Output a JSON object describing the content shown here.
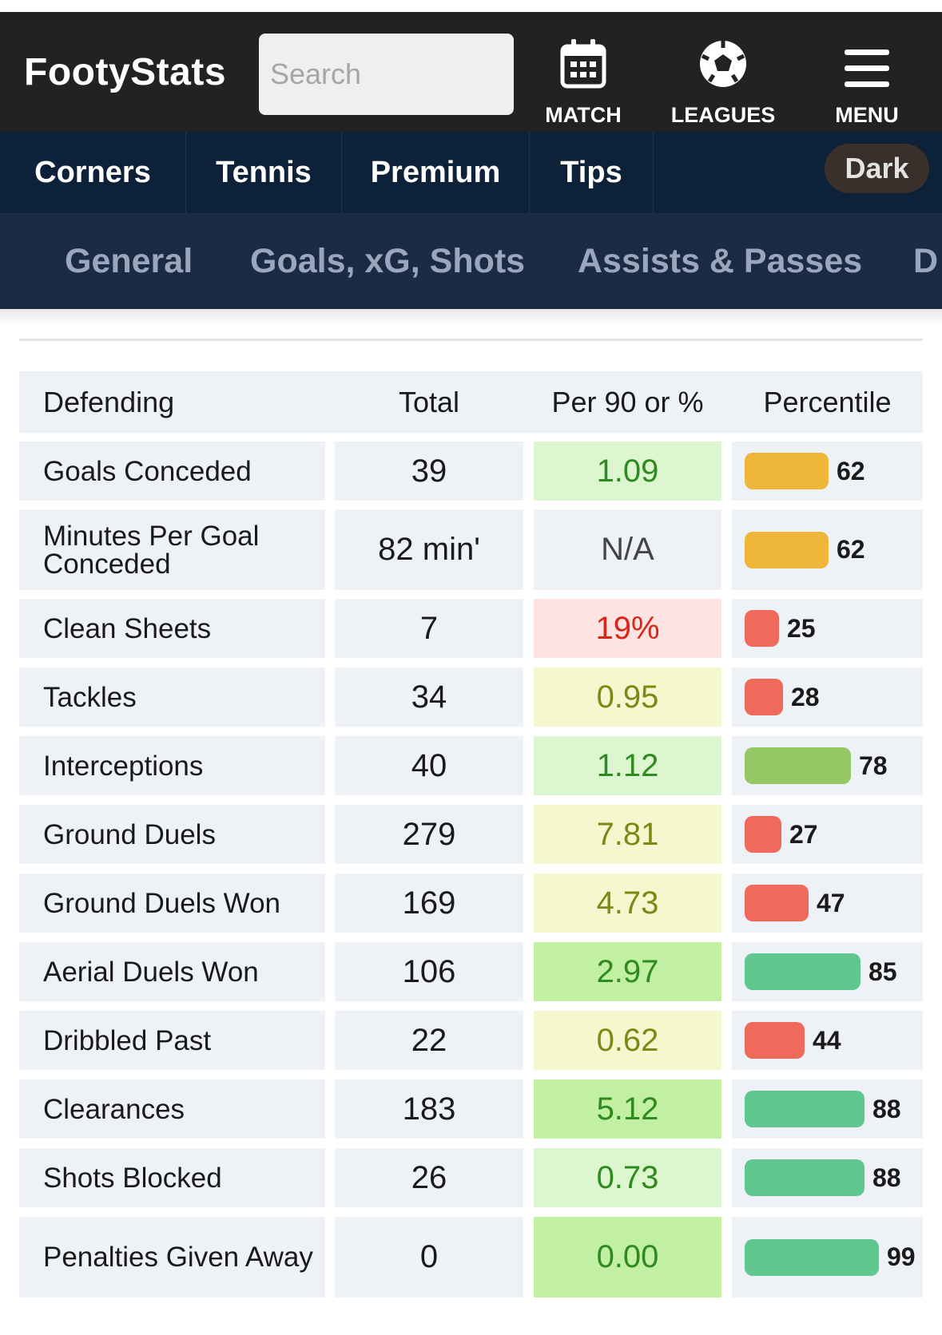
{
  "header": {
    "logo": "FootyStats",
    "search_placeholder": "Search",
    "nav": {
      "match": {
        "label": "MATCH",
        "icon": "calendar-icon"
      },
      "leagues": {
        "label": "LEAGUES",
        "icon": "soccer-ball-icon"
      },
      "menu": {
        "label": "MENU",
        "icon": "hamburger-menu-icon"
      }
    }
  },
  "subnav": {
    "items": [
      "Corners",
      "Tennis",
      "Premium",
      "Tips"
    ],
    "dark_toggle": "Dark"
  },
  "tabs": [
    "General",
    "Goals, xG, Shots",
    "Assists & Passes",
    "D"
  ],
  "table": {
    "headers": [
      "Defending",
      "Total",
      "Per 90 or %",
      "Percentile"
    ],
    "rows": [
      {
        "label": "Goals Conceded",
        "total": "39",
        "per": "1.09",
        "percentile": "62",
        "per_bg": "#dcf7d0",
        "per_color": "#2f8a1f",
        "bar_color": "#efb73a"
      },
      {
        "label": "Minutes Per Goal Conceded",
        "total": "82 min'",
        "per": "N/A",
        "percentile": "62",
        "per_bg": "#eef1f5",
        "per_color": "#444444",
        "bar_color": "#efb73a"
      },
      {
        "label": "Clean Sheets",
        "total": "7",
        "per": "19%",
        "percentile": "25",
        "per_bg": "#fde3e1",
        "per_color": "#d7261a",
        "bar_color": "#f06a5b"
      },
      {
        "label": "Tackles",
        "total": "34",
        "per": "0.95",
        "percentile": "28",
        "per_bg": "#f5f8cf",
        "per_color": "#7a8a16",
        "bar_color": "#f06a5b"
      },
      {
        "label": "Interceptions",
        "total": "40",
        "per": "1.12",
        "percentile": "78",
        "per_bg": "#dcf7d0",
        "per_color": "#2f8a1f",
        "bar_color": "#93c865"
      },
      {
        "label": "Ground Duels",
        "total": "279",
        "per": "7.81",
        "percentile": "27",
        "per_bg": "#f5f8cf",
        "per_color": "#7a8a16",
        "bar_color": "#f06a5b"
      },
      {
        "label": "Ground Duels Won",
        "total": "169",
        "per": "4.73",
        "percentile": "47",
        "per_bg": "#f5f8cf",
        "per_color": "#7a8a16",
        "bar_color": "#f06a5b"
      },
      {
        "label": "Aerial Duels Won",
        "total": "106",
        "per": "2.97",
        "percentile": "85",
        "per_bg": "#c2f0a2",
        "per_color": "#2f8a1f",
        "bar_color": "#5fc78f"
      },
      {
        "label": "Dribbled Past",
        "total": "22",
        "per": "0.62",
        "percentile": "44",
        "per_bg": "#f5f8cf",
        "per_color": "#7a8a16",
        "bar_color": "#f06a5b"
      },
      {
        "label": "Clearances",
        "total": "183",
        "per": "5.12",
        "percentile": "88",
        "per_bg": "#c2f0a2",
        "per_color": "#2f8a1f",
        "bar_color": "#5fc78f"
      },
      {
        "label": "Shots Blocked",
        "total": "26",
        "per": "0.73",
        "percentile": "88",
        "per_bg": "#dcf7d0",
        "per_color": "#2f8a1f",
        "bar_color": "#5fc78f"
      },
      {
        "label": "Penalties Given Away",
        "total": "0",
        "per": "0.00",
        "percentile": "99",
        "per_bg": "#c2f0a2",
        "per_color": "#2f8a1f",
        "bar_color": "#5fc78f"
      }
    ]
  }
}
